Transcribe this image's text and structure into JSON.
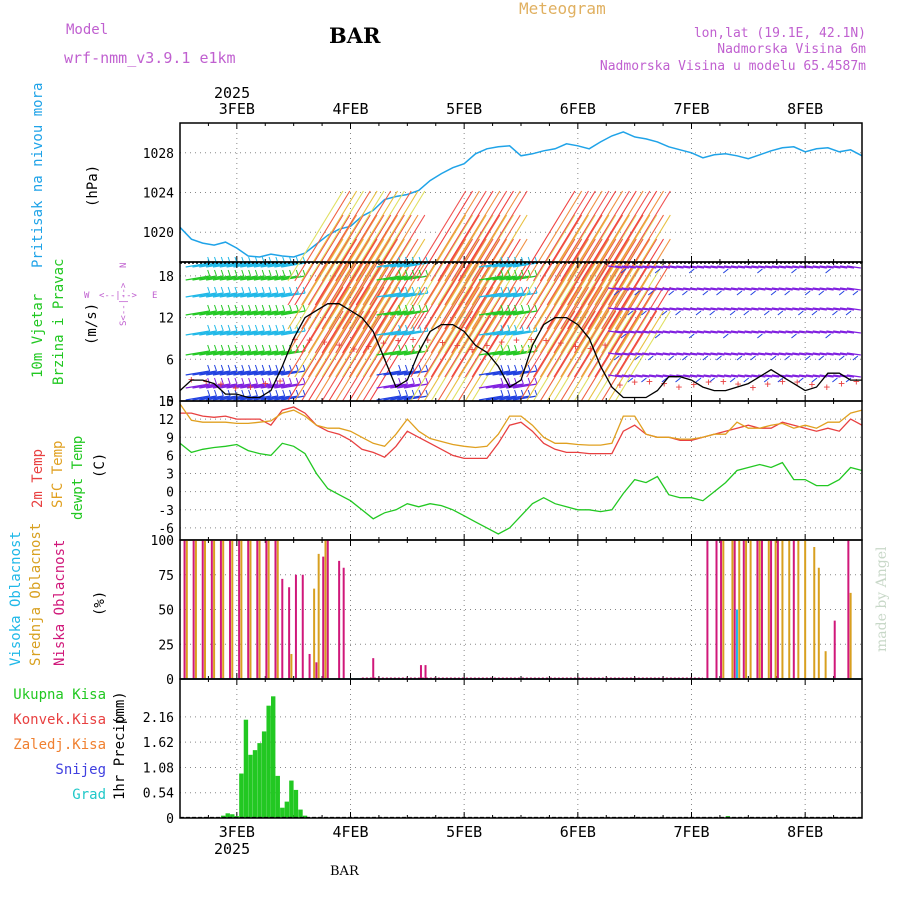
{
  "header": {
    "model_label": "Model",
    "model_name": "wrf-nmm_v3.9.1 e1km",
    "station": "BAR",
    "chart_title": "Meteogram",
    "coords": "lon,lat (19.1E, 42.1N)",
    "elevation": "Nadmorska Visina 6m",
    "model_elevation": "Nadmorska Visina u modelu 65.4587m"
  },
  "footer": {
    "station": "BAR",
    "credit": "made by Angel"
  },
  "x_axis": {
    "year": "2025",
    "date_labels": [
      "3FEB",
      "4FEB",
      "5FEB",
      "6FEB",
      "7FEB",
      "8FEB"
    ],
    "range_days": [
      2.5,
      8.5
    ]
  },
  "colors": {
    "pressure": "#1fa3e8",
    "wind_speed": "#000000",
    "temp2m": "#e84040",
    "sfc_temp": "#e0a020",
    "dewpt": "#22c822",
    "cloud_high": "#1fb8e8",
    "cloud_mid": "#d8a020",
    "cloud_low": "#d0187a",
    "precip_total": "#22c822",
    "precip_conv": "#e84040",
    "precip_frz": "#f08030",
    "precip_snow": "#4040e0",
    "precip_hail": "#20c8c8",
    "title": "#e0b060",
    "meta": "#c060d0"
  },
  "chart_data": [
    {
      "type": "line",
      "ylabel": "Pritisak na nivou mora",
      "unit": "(hPa)",
      "ylim": [
        1017,
        1031
      ],
      "yticks": [
        1020,
        1024,
        1028
      ],
      "grid": true,
      "series": [
        {
          "x": [
            2.5,
            2.6,
            2.7,
            2.8,
            2.9,
            3.0,
            3.1,
            3.2,
            3.3,
            3.4,
            3.5,
            3.6,
            3.7,
            3.8,
            3.9,
            4.0,
            4.1,
            4.2,
            4.3,
            4.4,
            4.5,
            4.6,
            4.7,
            4.8,
            4.9,
            5.0,
            5.1,
            5.2,
            5.3,
            5.4,
            5.5,
            5.6,
            5.7,
            5.8,
            5.9,
            6.0,
            6.1,
            6.2,
            6.3,
            6.4,
            6.5,
            6.6,
            6.7,
            6.8,
            6.9,
            7.0,
            7.1,
            7.2,
            7.3,
            7.4,
            7.5,
            7.6,
            7.7,
            7.8,
            7.9,
            8.0,
            8.1,
            8.2,
            8.3,
            8.4,
            8.5
          ],
          "values": [
            1020.5,
            1019.3,
            1018.9,
            1018.7,
            1019.0,
            1018.4,
            1017.6,
            1017.5,
            1017.8,
            1017.6,
            1017.5,
            1017.9,
            1018.8,
            1019.7,
            1020.3,
            1020.6,
            1021.6,
            1022.2,
            1023.3,
            1023.6,
            1023.8,
            1024.2,
            1025.2,
            1025.9,
            1026.5,
            1026.9,
            1027.9,
            1028.4,
            1028.6,
            1028.7,
            1027.7,
            1027.9,
            1028.2,
            1028.4,
            1028.9,
            1028.7,
            1028.4,
            1029.1,
            1029.7,
            1030.1,
            1029.6,
            1029.4,
            1029.1,
            1028.6,
            1028.3,
            1028.0,
            1027.5,
            1027.8,
            1027.9,
            1027.7,
            1027.4,
            1027.8,
            1028.2,
            1028.5,
            1028.6,
            1028.1,
            1028.4,
            1028.5,
            1028.1,
            1028.3,
            1027.7
          ]
        }
      ]
    },
    {
      "type": "line",
      "ylabel": "10m Vjetar Brzina i Pravac",
      "unit": "(m/s)",
      "compass": {
        "n": "N",
        "w": "W",
        "e": "E",
        "s": "S"
      },
      "ylim": [
        0,
        20
      ],
      "yticks": [
        0,
        6,
        12,
        18
      ],
      "grid": true,
      "series": [
        {
          "x": [
            2.5,
            2.6,
            2.7,
            2.8,
            2.9,
            3.0,
            3.1,
            3.2,
            3.3,
            3.4,
            3.5,
            3.6,
            3.7,
            3.8,
            3.9,
            4.0,
            4.1,
            4.2,
            4.3,
            4.4,
            4.5,
            4.6,
            4.7,
            4.8,
            4.9,
            5.0,
            5.1,
            5.2,
            5.3,
            5.4,
            5.5,
            5.6,
            5.7,
            5.8,
            5.9,
            6.0,
            6.1,
            6.2,
            6.3,
            6.4,
            6.5,
            6.6,
            6.7,
            6.8,
            6.9,
            7.0,
            7.1,
            7.2,
            7.3,
            7.4,
            7.5,
            7.6,
            7.7,
            7.8,
            7.9,
            8.0,
            8.1,
            8.2,
            8.3,
            8.4,
            8.5
          ],
          "values": [
            1.5,
            3.0,
            3.0,
            2.5,
            1.0,
            1.0,
            0.5,
            0.5,
            1.5,
            5,
            9,
            12,
            13,
            14,
            14,
            13,
            12,
            10,
            6,
            2,
            3,
            7,
            10,
            11,
            11,
            10,
            8,
            7,
            5,
            2,
            3,
            8,
            11,
            12,
            12,
            11,
            9,
            5,
            2,
            0.5,
            0.5,
            0.5,
            1.5,
            3.5,
            3.5,
            3,
            2,
            1.5,
            1.5,
            2.0,
            2.5,
            3.5,
            4.5,
            3.5,
            2.5,
            1.5,
            2,
            4,
            4,
            3,
            3
          ]
        }
      ]
    },
    {
      "type": "line",
      "ylabel": [
        "2m Temp",
        "SFC Temp",
        "dewpt Temp"
      ],
      "unit": "(C)",
      "ylim": [
        -8,
        15
      ],
      "yticks": [
        -6,
        -3,
        0,
        3,
        6,
        9,
        12,
        15
      ],
      "grid": true,
      "series": [
        {
          "name": "2m Temp",
          "x": [
            2.5,
            2.6,
            2.7,
            2.8,
            2.9,
            3.0,
            3.1,
            3.2,
            3.3,
            3.4,
            3.5,
            3.6,
            3.7,
            3.8,
            3.9,
            4.0,
            4.1,
            4.2,
            4.3,
            4.4,
            4.5,
            4.6,
            4.7,
            4.8,
            4.9,
            5.0,
            5.1,
            5.2,
            5.3,
            5.4,
            5.5,
            5.6,
            5.7,
            5.8,
            5.9,
            6.0,
            6.1,
            6.2,
            6.3,
            6.4,
            6.5,
            6.6,
            6.7,
            6.8,
            6.9,
            7.0,
            7.1,
            7.2,
            7.3,
            7.4,
            7.5,
            7.6,
            7.7,
            7.8,
            7.9,
            8.0,
            8.1,
            8.2,
            8.3,
            8.4,
            8.5
          ],
          "values": [
            13,
            13,
            12.5,
            12.3,
            12.5,
            12,
            12,
            12,
            11,
            13.5,
            14,
            13,
            11,
            10,
            9.5,
            8.5,
            7,
            6.5,
            5.7,
            7.5,
            10,
            9,
            8,
            7,
            6,
            5.5,
            5.5,
            5.5,
            8,
            11,
            11.5,
            10,
            8,
            7,
            6.5,
            6.5,
            6.3,
            6.3,
            6.3,
            10,
            11,
            9.5,
            9,
            9,
            8.5,
            8.5,
            9,
            9.5,
            10,
            10.5,
            11,
            10.5,
            10.5,
            11.5,
            11,
            10.5,
            10,
            10.5,
            10,
            12,
            11
          ]
        },
        {
          "name": "SFC Temp",
          "x": [
            2.5,
            2.6,
            2.7,
            2.8,
            2.9,
            3.0,
            3.1,
            3.2,
            3.3,
            3.4,
            3.5,
            3.6,
            3.7,
            3.8,
            3.9,
            4.0,
            4.1,
            4.2,
            4.3,
            4.4,
            4.5,
            4.6,
            4.7,
            4.8,
            4.9,
            5.0,
            5.1,
            5.2,
            5.3,
            5.4,
            5.5,
            5.6,
            5.7,
            5.8,
            5.9,
            6.0,
            6.1,
            6.2,
            6.3,
            6.4,
            6.5,
            6.6,
            6.7,
            6.8,
            6.9,
            7.0,
            7.1,
            7.2,
            7.3,
            7.4,
            7.5,
            7.6,
            7.7,
            7.8,
            7.9,
            8.0,
            8.1,
            8.2,
            8.3,
            8.4,
            8.5
          ],
          "values": [
            14.5,
            11.8,
            11.5,
            11.5,
            11.5,
            11.3,
            11.3,
            11.5,
            11.7,
            13,
            13.5,
            12.5,
            11,
            10.5,
            10.5,
            10,
            9,
            8,
            7.5,
            9.5,
            12,
            10,
            8.8,
            8.3,
            7.8,
            7.5,
            7.3,
            7.5,
            9.5,
            12.5,
            12.5,
            11,
            9,
            8,
            8,
            7.8,
            7.7,
            7.7,
            8,
            12.5,
            12.5,
            9.5,
            9,
            9,
            8.7,
            8.7,
            9,
            9.5,
            9.5,
            11.5,
            10.5,
            10.5,
            11,
            11.3,
            10.5,
            11,
            10.5,
            11.5,
            11.5,
            13,
            13.5
          ]
        },
        {
          "name": "dewpt Temp",
          "x": [
            2.5,
            2.6,
            2.7,
            2.8,
            2.9,
            3.0,
            3.1,
            3.2,
            3.3,
            3.4,
            3.5,
            3.6,
            3.7,
            3.8,
            3.9,
            4.0,
            4.1,
            4.2,
            4.3,
            4.4,
            4.5,
            4.6,
            4.7,
            4.8,
            4.9,
            5.0,
            5.1,
            5.2,
            5.3,
            5.4,
            5.5,
            5.6,
            5.7,
            5.8,
            5.9,
            6.0,
            6.1,
            6.2,
            6.3,
            6.4,
            6.5,
            6.6,
            6.7,
            6.8,
            6.9,
            7.0,
            7.1,
            7.2,
            7.3,
            7.4,
            7.5,
            7.6,
            7.7,
            7.8,
            7.9,
            8.0,
            8.1,
            8.2,
            8.3,
            8.4,
            8.5
          ],
          "values": [
            8,
            6.5,
            7,
            7.3,
            7.5,
            7.8,
            6.8,
            6.3,
            6,
            8,
            7.5,
            6.3,
            3,
            0.5,
            -0.5,
            -1.5,
            -3,
            -4.5,
            -3.5,
            -3,
            -2,
            -2.5,
            -2,
            -2.3,
            -3,
            -4,
            -5,
            -6,
            -7,
            -6,
            -4,
            -2,
            -1,
            -2,
            -2.5,
            -3,
            -3,
            -3.3,
            -3,
            -0.3,
            2,
            1.5,
            2.5,
            -0.5,
            -1,
            -1,
            -1.5,
            0,
            1.5,
            3.5,
            4,
            4.5,
            4,
            4.8,
            2,
            2,
            1,
            1,
            2,
            4,
            3.5
          ]
        }
      ]
    },
    {
      "type": "bar",
      "ylabel": [
        "Visoka Oblacnost",
        "Srednja Oblacnost",
        "Niska Oblacnost"
      ],
      "unit": "(%)",
      "ylim": [
        0,
        100
      ],
      "yticks": [
        0,
        25,
        50,
        75,
        100
      ],
      "grid": true,
      "series": [
        {
          "name": "Niska Oblacnost",
          "x": [
            2.54,
            2.62,
            2.7,
            2.78,
            2.86,
            2.94,
            3.02,
            3.1,
            3.18,
            3.26,
            3.34,
            3.4,
            3.46,
            3.52,
            3.58,
            3.64,
            3.7,
            3.76,
            3.8,
            3.9,
            3.94,
            4.2,
            4.62,
            4.66,
            7.14,
            7.22,
            7.26,
            7.38,
            7.46,
            7.58,
            7.62,
            7.7,
            7.76,
            7.9,
            8.26,
            8.38
          ],
          "values": [
            100,
            100,
            100,
            100,
            100,
            100,
            100,
            100,
            100,
            100,
            100,
            72,
            66,
            75,
            75,
            18,
            12,
            88,
            100,
            85,
            80,
            15,
            10,
            10,
            100,
            100,
            100,
            100,
            100,
            100,
            100,
            100,
            100,
            100,
            42,
            100
          ]
        },
        {
          "name": "Srednja Oblacnost",
          "x": [
            2.56,
            2.64,
            2.72,
            2.8,
            2.88,
            2.96,
            3.04,
            3.12,
            3.2,
            3.28,
            3.36,
            3.48,
            3.68,
            3.72,
            3.78,
            7.28,
            7.36,
            7.42,
            7.48,
            7.52,
            7.6,
            7.68,
            7.74,
            7.8,
            7.86,
            7.94,
            8.0,
            8.08,
            8.12,
            8.18,
            8.4
          ],
          "values": [
            100,
            100,
            100,
            100,
            100,
            100,
            100,
            100,
            100,
            100,
            100,
            18,
            65,
            90,
            100,
            100,
            100,
            100,
            100,
            100,
            100,
            100,
            100,
            100,
            100,
            100,
            100,
            95,
            80,
            20,
            62
          ]
        },
        {
          "name": "Visoka Oblacnost",
          "x": [
            7.4
          ],
          "values": [
            50
          ]
        }
      ]
    },
    {
      "type": "bar",
      "ylabel": "1hr Precip",
      "unit": "(mm)",
      "legend": [
        "Ukupna Kisa",
        "Konvek.Kisa",
        "Zaledj.Kisa",
        "Snijeg",
        "Grad"
      ],
      "ylim": [
        0,
        2.97
      ],
      "yticks": [
        0,
        0.54,
        1.08,
        1.62,
        2.16
      ],
      "grid": true,
      "series": [
        {
          "name": "Ukupna Kisa",
          "x": [
            2.88,
            2.92,
            2.96,
            3.0,
            3.04,
            3.08,
            3.12,
            3.16,
            3.2,
            3.24,
            3.28,
            3.32,
            3.36,
            3.4,
            3.44,
            3.48,
            3.52,
            3.56,
            3.6,
            7.32
          ],
          "values": [
            0.05,
            0.1,
            0.08,
            0.04,
            0.95,
            2.1,
            1.35,
            1.45,
            1.6,
            1.85,
            2.4,
            2.6,
            0.9,
            0.22,
            0.35,
            0.8,
            0.6,
            0.18,
            0.05,
            0.04
          ]
        }
      ]
    }
  ]
}
